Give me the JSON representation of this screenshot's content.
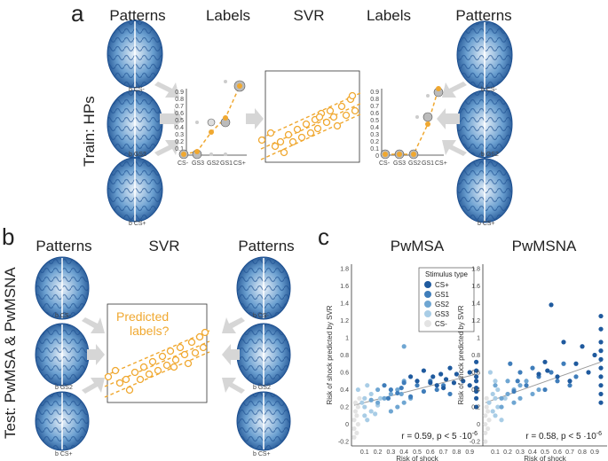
{
  "panels": {
    "a": {
      "letter": "a",
      "row_label": "Train: HPs",
      "headers": [
        "Patterns",
        "Labels",
        "SVR",
        "Labels",
        "Patterns"
      ],
      "brain_labels_left": [
        "b CS-",
        "b GS2",
        "b CS+"
      ],
      "brain_labels_right": [
        "b CS-",
        "b GS2",
        "b CS+"
      ],
      "label_categories": [
        "CS-",
        "GS3",
        "GS2",
        "GS1",
        "CS+"
      ],
      "label_values": [
        0,
        0.1,
        0.35,
        0.55,
        0.95
      ],
      "label_yticks": [
        "0",
        "0.1",
        "0.2",
        "0.3",
        "0.4",
        "0.5",
        "0.6",
        "0.7",
        "0.8",
        "0.9"
      ]
    },
    "b": {
      "letter": "b",
      "row_label": "Test: PwMSA & PwMSNA",
      "headers": [
        "Patterns",
        "SVR",
        "Patterns"
      ],
      "predicted_text_1": "Predicted",
      "predicted_text_2": "labels?",
      "brain_labels_left": [
        "b CS-",
        "b GS2",
        "b CS+"
      ],
      "brain_labels_right": [
        "b CS-",
        "b GS2",
        "b CS+"
      ]
    },
    "c": {
      "letter": "c"
    }
  },
  "colors": {
    "orange": "#F0A830",
    "cs_plus": "#1F5A9E",
    "gs1": "#3F7DBA",
    "gs2": "#6FA6D2",
    "gs3": "#A9CDE6",
    "cs_minus": "#E3E3E3",
    "arrow": "#D6D6D6"
  },
  "chart_data": [
    {
      "type": "scatter",
      "title": "PwMSA",
      "xlabel": "Risk of shock",
      "ylabel": "Risk of shock predicted by SVR",
      "xlim": [
        0,
        1
      ],
      "ylim": [
        -0.25,
        1.85
      ],
      "xticks": [
        "0.1",
        "0.2",
        "0.3",
        "0.4",
        "0.5",
        "0.6",
        "0.7",
        "0.8",
        "0.9"
      ],
      "yticks": [
        "-0.2",
        "0",
        "0.2",
        "0.4",
        "0.6",
        "0.8",
        "1",
        "1.2",
        "1.4",
        "1.6",
        "1.8"
      ],
      "annotation": "r = 0.59, p < 5 ·10",
      "annotation_exp": "-6",
      "legend_title": "Stimulus type",
      "legend_entries": [
        "CS+",
        "GS1",
        "GS2",
        "GS3",
        "CS-"
      ],
      "fit_line": [
        [
          0.02,
          0.22
        ],
        [
          0.95,
          0.58
        ]
      ],
      "series": [
        {
          "name": "CS+",
          "x": [
            0.95,
            0.95,
            0.95,
            0.95,
            0.95,
            0.95,
            0.95,
            0.95,
            0.9,
            0.9,
            0.85,
            0.8,
            0.78,
            0.75,
            0.72,
            0.7,
            0.68,
            0.65,
            0.62,
            0.6,
            0.55,
            0.5,
            0.45
          ],
          "y": [
            0.62,
            0.55,
            0.5,
            0.42,
            0.38,
            0.3,
            0.2,
            0.72,
            0.45,
            0.6,
            0.5,
            0.58,
            0.48,
            0.65,
            0.52,
            0.42,
            0.58,
            0.45,
            0.55,
            0.48,
            0.62,
            0.5,
            0.55
          ]
        },
        {
          "name": "GS1",
          "x": [
            0.75,
            0.7,
            0.65,
            0.6,
            0.55,
            0.5,
            0.45,
            0.4,
            0.38,
            0.35,
            0.3,
            0.28,
            0.25
          ],
          "y": [
            0.35,
            0.45,
            0.4,
            0.5,
            0.38,
            0.45,
            0.32,
            0.48,
            0.42,
            0.36,
            0.4,
            0.3,
            0.45
          ]
        },
        {
          "name": "GS2",
          "x": [
            0.45,
            0.4,
            0.4,
            0.35,
            0.35,
            0.3,
            0.3,
            0.25,
            0.2,
            0.2,
            0.15,
            0.4,
            0.38
          ],
          "y": [
            0.3,
            0.9,
            0.25,
            0.4,
            0.2,
            0.35,
            0.15,
            0.3,
            0.25,
            0.4,
            0.28,
            0.5,
            0.35
          ]
        },
        {
          "name": "GS3",
          "x": [
            0.1,
            0.1,
            0.1,
            0.12,
            0.15,
            0.15,
            0.08,
            0.05,
            0.2,
            0.22,
            0.18,
            0.12
          ],
          "y": [
            0.1,
            0.2,
            0.3,
            0.05,
            0.15,
            0.35,
            0.25,
            0.4,
            0.22,
            0.3,
            0.12,
            0.45
          ]
        },
        {
          "name": "CS-",
          "x": [
            0.02,
            0.02,
            0.02,
            0.03,
            0.03,
            0.04,
            0.04,
            0.05,
            0.05,
            0.06
          ],
          "y": [
            -0.15,
            -0.05,
            0.05,
            0.15,
            0.25,
            -0.1,
            0.1,
            0.2,
            0.0,
            0.3
          ]
        }
      ]
    },
    {
      "type": "scatter",
      "title": "PwMSNA",
      "xlabel": "Risk of shock",
      "ylabel": "Risk of shock predicted by SVR",
      "xlim": [
        0,
        1
      ],
      "ylim": [
        -0.25,
        1.85
      ],
      "xticks": [
        "0.1",
        "0.2",
        "0.3",
        "0.4",
        "0.5",
        "0.6",
        "0.7",
        "0.8",
        "0.9"
      ],
      "yticks": [
        "-0.2",
        "0",
        "0.2",
        "0.4",
        "0.6",
        "0.8",
        "1",
        "1.2",
        "1.4",
        "1.6",
        "1.8"
      ],
      "annotation": "r = 0.58, p < 5 ·10",
      "annotation_exp": "-6",
      "fit_line": [
        [
          0.02,
          0.25
        ],
        [
          0.95,
          0.72
        ]
      ],
      "series": [
        {
          "name": "CS+",
          "x": [
            0.95,
            0.95,
            0.95,
            0.95,
            0.95,
            0.95,
            0.95,
            0.95,
            0.95,
            0.95,
            0.9,
            0.85,
            0.8,
            0.75,
            0.7,
            0.65,
            0.6,
            0.55,
            0.52,
            0.5,
            0.45
          ],
          "y": [
            1.25,
            1.1,
            0.95,
            0.85,
            0.75,
            0.65,
            0.55,
            0.45,
            0.35,
            0.25,
            0.8,
            0.6,
            0.9,
            0.7,
            0.5,
            0.95,
            0.55,
            1.38,
            0.62,
            0.72,
            0.58
          ]
        },
        {
          "name": "GS1",
          "x": [
            0.75,
            0.7,
            0.65,
            0.6,
            0.55,
            0.5,
            0.45,
            0.4,
            0.35,
            0.3,
            0.28,
            0.25,
            0.22
          ],
          "y": [
            0.55,
            0.45,
            0.7,
            0.5,
            0.6,
            0.4,
            0.55,
            0.65,
            0.45,
            0.6,
            0.5,
            0.38,
            0.7
          ]
        },
        {
          "name": "GS2",
          "x": [
            0.45,
            0.4,
            0.35,
            0.3,
            0.3,
            0.25,
            0.25,
            0.2,
            0.2,
            0.15,
            0.15,
            0.1
          ],
          "y": [
            0.4,
            0.35,
            0.5,
            0.3,
            0.45,
            0.25,
            0.4,
            0.35,
            0.5,
            0.3,
            0.2,
            0.45
          ]
        },
        {
          "name": "GS3",
          "x": [
            0.1,
            0.1,
            0.12,
            0.12,
            0.08,
            0.08,
            0.05,
            0.15,
            0.18,
            0.1,
            0.06
          ],
          "y": [
            0.1,
            0.3,
            0.2,
            0.4,
            0.15,
            0.35,
            0.25,
            0.05,
            0.3,
            0.5,
            0.6
          ]
        },
        {
          "name": "CS-",
          "x": [
            0.02,
            0.02,
            0.02,
            0.02,
            0.03,
            0.03,
            0.04,
            0.04,
            0.05,
            0.05
          ],
          "y": [
            -0.2,
            -0.1,
            0.0,
            0.1,
            0.2,
            0.3,
            -0.05,
            0.15,
            0.05,
            0.25
          ]
        }
      ]
    }
  ]
}
